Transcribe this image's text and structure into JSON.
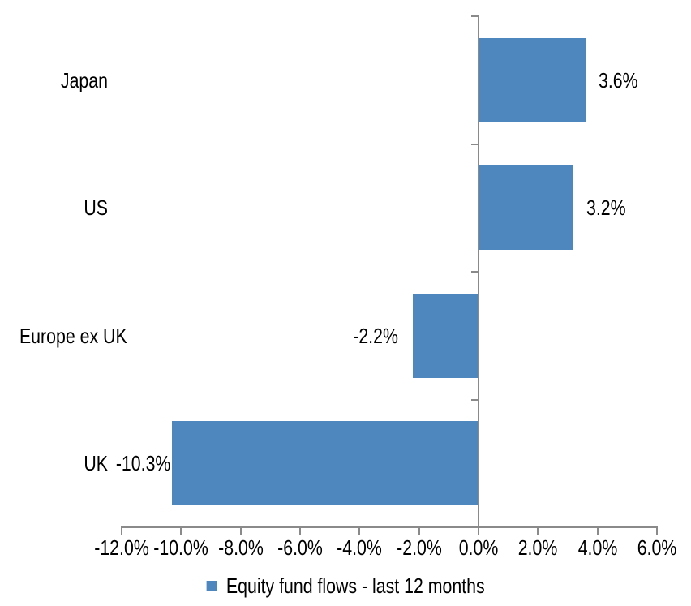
{
  "chart_data": {
    "type": "bar",
    "orientation": "horizontal",
    "categories": [
      "Japan",
      "US",
      "Europe ex UK",
      "UK"
    ],
    "values": [
      3.6,
      3.2,
      -2.2,
      -10.3
    ],
    "data_labels": [
      "3.6%",
      "3.2%",
      "-2.2%",
      "-10.3%"
    ],
    "series": [
      {
        "name": "Equity fund flows - last 12 months",
        "values": [
          3.6,
          3.2,
          -2.2,
          -10.3
        ]
      }
    ],
    "xlim": [
      -12,
      6
    ],
    "x_tick_step": 2,
    "x_tick_labels": [
      "-12.0%",
      "-10.0%",
      "-8.0%",
      "-6.0%",
      "-4.0%",
      "-2.0%",
      "0.0%",
      "2.0%",
      "4.0%",
      "6.0%"
    ],
    "grid": false,
    "legend_position": "bottom",
    "bar_color": "#4e86be",
    "axis_color": "#8a8a8a",
    "text_color": "#000000",
    "background_color": "#ffffff"
  },
  "legend": {
    "label": "Equity fund flows - last 12 months"
  }
}
